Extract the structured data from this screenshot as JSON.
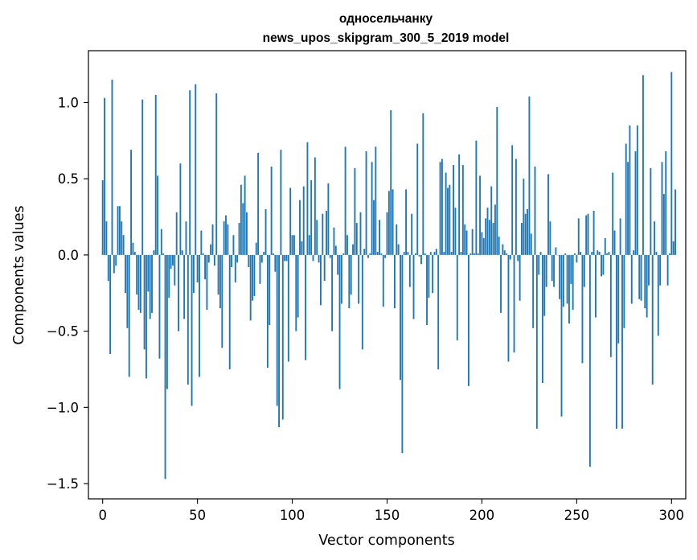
{
  "chart_data": {
    "type": "bar",
    "title": "односельчанку",
    "subtitle": "news_upos_skipgram_300_5_2019 model",
    "xlabel": "Vector components",
    "ylabel": "Components values",
    "xlim": [
      -7.5,
      307.5
    ],
    "ylim": [
      -1.6,
      1.34
    ],
    "xticks": [
      0,
      50,
      100,
      150,
      200,
      250,
      300
    ],
    "xtick_labels": [
      "0",
      "50",
      "100",
      "150",
      "200",
      "250",
      "300"
    ],
    "yticks": [
      1.0,
      0.5,
      0.0,
      -0.5,
      -1.0,
      -1.5
    ],
    "ytick_labels": [
      "1.0",
      "0.5",
      "0.0",
      "−0.5",
      "−1.0",
      "−1.5"
    ],
    "bar_color": "#1f77b4",
    "values": [
      0.49,
      1.03,
      0.22,
      -0.17,
      -0.65,
      1.15,
      -0.12,
      -0.07,
      0.32,
      0.32,
      0.22,
      0.13,
      -0.25,
      -0.48,
      -0.8,
      0.69,
      0.08,
      0.02,
      -0.26,
      -0.36,
      -0.38,
      1.02,
      -0.62,
      -0.81,
      -0.24,
      -0.42,
      -0.38,
      0.03,
      1.05,
      0.52,
      -0.68,
      0.17,
      0.01,
      -1.47,
      -0.88,
      -0.28,
      -0.09,
      -0.07,
      -0.2,
      0.28,
      -0.5,
      0.6,
      0.03,
      -0.42,
      0.22,
      -0.85,
      1.08,
      -0.99,
      -0.25,
      1.12,
      -0.18,
      -0.8,
      0.16,
      0.01,
      -0.16,
      -0.36,
      -0.05,
      0.07,
      0.2,
      -0.07,
      1.06,
      -0.26,
      -0.35,
      -0.61,
      0.22,
      0.26,
      0.2,
      -0.75,
      -0.08,
      0.13,
      -0.18,
      -0.05,
      0.21,
      0.46,
      0.34,
      0.52,
      0.28,
      -0.08,
      -0.43,
      -0.3,
      -0.27,
      0.08,
      0.67,
      -0.19,
      -0.05,
      0.02,
      0.3,
      -0.74,
      -0.46,
      0.58,
      0.01,
      -0.11,
      -0.99,
      -1.13,
      0.69,
      -1.08,
      -0.04,
      -0.04,
      -0.7,
      0.44,
      0.13,
      0.13,
      -0.5,
      -0.41,
      0.36,
      0.09,
      0.45,
      -0.69,
      0.74,
      0.13,
      0.49,
      -0.04,
      0.64,
      0.23,
      -0.05,
      -0.33,
      0.27,
      -0.17,
      0.29,
      0.47,
      -0.02,
      -0.5,
      0.18,
      0.06,
      -0.13,
      -0.88,
      -0.32,
      0.01,
      0.71,
      0.13,
      -0.35,
      -0.26,
      0.07,
      0.57,
      0.21,
      -0.32,
      0.28,
      -0.62,
      0.04,
      0.68,
      -0.02,
      0.01,
      0.61,
      0.36,
      0.71,
      0.02,
      0.23,
      0.01,
      -0.34,
      -0.02,
      0.28,
      0.42,
      0.95,
      0.43,
      -0.35,
      0.2,
      0.07,
      -0.82,
      -1.3,
      0.02,
      0.43,
      0.02,
      -0.21,
      0.27,
      -0.42,
      0.01,
      0.73,
      -0.01,
      -0.06,
      0.93,
      0.01,
      -0.46,
      -0.28,
      0.02,
      -0.25,
      0.02,
      0.04,
      -0.75,
      0.61,
      0.63,
      0.02,
      0.54,
      0.44,
      0.46,
      0.02,
      0.59,
      0.31,
      -0.56,
      0.66,
      0.02,
      0.59,
      0.2,
      0.16,
      -0.86,
      0.01,
      0.17,
      0.01,
      0.75,
      0.01,
      0.52,
      0.15,
      0.11,
      0.24,
      0.31,
      0.23,
      0.45,
      0.21,
      0.33,
      0.97,
      0.12,
      -0.38,
      0.07,
      0.03,
      0.01,
      -0.7,
      -0.03,
      0.72,
      -0.64,
      0.63,
      -0.04,
      -0.3,
      0.21,
      0.5,
      0.27,
      0.3,
      1.04,
      0.14,
      -0.48,
      0.58,
      -1.14,
      -0.13,
      0.02,
      -0.84,
      -0.4,
      -0.21,
      0.53,
      0.22,
      -0.17,
      -0.21,
      0.05,
      0.0,
      -0.29,
      -1.06,
      -0.34,
      0.01,
      -0.32,
      -0.45,
      -0.19,
      -0.36,
      0.01,
      -0.05,
      0.24,
      0.02,
      -0.71,
      -0.21,
      0.26,
      0.27,
      -1.39,
      0.02,
      0.29,
      -0.41,
      0.03,
      0.02,
      -0.14,
      -0.13,
      0.11,
      0.01,
      0.02,
      -0.67,
      0.54,
      0.16,
      -1.14,
      -0.58,
      0.24,
      -1.14,
      -0.48,
      0.73,
      0.61,
      0.85,
      -0.32,
      0.03,
      0.68,
      0.85,
      -0.29,
      -0.3,
      1.18,
      -0.35,
      -0.41,
      -0.2,
      0.57,
      -0.85,
      0.22,
      0.02,
      -0.53,
      -0.2,
      0.61,
      0.4,
      0.68,
      -0.2,
      0.01,
      1.2,
      0.09,
      0.43
    ]
  }
}
